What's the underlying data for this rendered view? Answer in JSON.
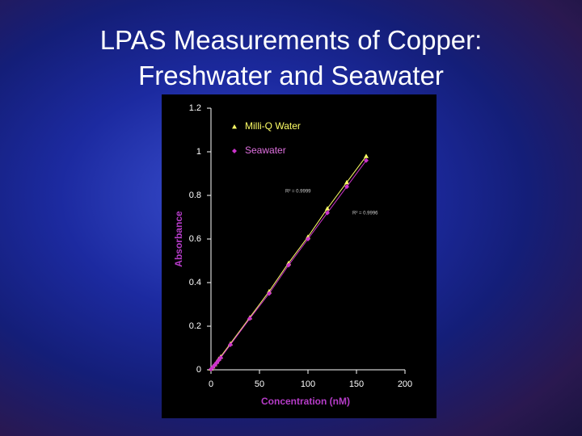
{
  "chart_data": {
    "type": "scatter",
    "title": "LPAS Measurements of Copper: Freshwater and Seawater",
    "x_label": "Concentration (nM)",
    "y_label": "Absorbance",
    "x": [
      0,
      2,
      4,
      6,
      8,
      10,
      20,
      40,
      60,
      80,
      100,
      120,
      140,
      160
    ],
    "series": [
      {
        "name": "Milli-Q Water",
        "color": "#ffff66",
        "marker": "triangle",
        "values": [
          0.005,
          0.015,
          0.025,
          0.037,
          0.05,
          0.06,
          0.12,
          0.24,
          0.36,
          0.49,
          0.61,
          0.74,
          0.86,
          0.98
        ]
      },
      {
        "name": "Seawater",
        "color": "#cc33cc",
        "marker": "diamond",
        "values": [
          0.003,
          0.012,
          0.022,
          0.033,
          0.044,
          0.055,
          0.115,
          0.235,
          0.35,
          0.48,
          0.6,
          0.72,
          0.84,
          0.96
        ]
      }
    ],
    "annotations": [
      "R² = 0.9999",
      "R² = 0.9996"
    ],
    "xlim": [
      0,
      200
    ],
    "xticks": [
      0,
      50,
      100,
      150,
      200
    ],
    "ylim": [
      0,
      1.2
    ],
    "yticks": [
      0,
      0.2,
      0.4,
      0.6,
      0.8,
      1,
      1.2
    ],
    "legend": "upper left"
  }
}
